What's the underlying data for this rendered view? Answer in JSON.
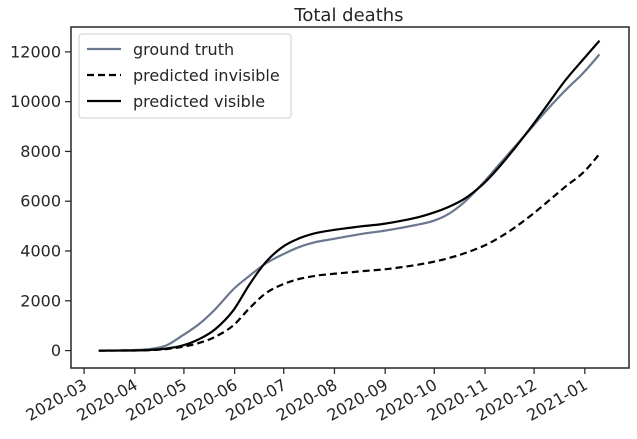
{
  "chart_data": {
    "type": "line",
    "title": "Total deaths",
    "xlabel": "",
    "ylabel": "",
    "x_ticks": [
      "2020-03",
      "2020-04",
      "2020-05",
      "2020-06",
      "2020-07",
      "2020-08",
      "2020-09",
      "2020-10",
      "2020-11",
      "2020-12",
      "2021-01"
    ],
    "xlim": [
      "2020-02-22",
      "2021-01-28"
    ],
    "y_ticks": [
      0,
      2000,
      4000,
      6000,
      8000,
      10000,
      12000
    ],
    "ylim": [
      -700,
      13000
    ],
    "grid": false,
    "legend": "top-left",
    "series": [
      {
        "name": "ground truth",
        "color": "#6b778d",
        "style": "solid",
        "points": [
          [
            "2020-03-10",
            0
          ],
          [
            "2020-03-20",
            5
          ],
          [
            "2020-03-31",
            20
          ],
          [
            "2020-04-10",
            60
          ],
          [
            "2020-04-20",
            200
          ],
          [
            "2020-04-30",
            600
          ],
          [
            "2020-05-10",
            1050
          ],
          [
            "2020-05-20",
            1650
          ],
          [
            "2020-05-31",
            2450
          ],
          [
            "2020-06-10",
            3000
          ],
          [
            "2020-06-20",
            3500
          ],
          [
            "2020-06-30",
            3850
          ],
          [
            "2020-07-10",
            4150
          ],
          [
            "2020-07-20",
            4350
          ],
          [
            "2020-07-31",
            4480
          ],
          [
            "2020-08-10",
            4600
          ],
          [
            "2020-08-20",
            4710
          ],
          [
            "2020-08-31",
            4810
          ],
          [
            "2020-09-10",
            4920
          ],
          [
            "2020-09-20",
            5050
          ],
          [
            "2020-09-30",
            5200
          ],
          [
            "2020-10-10",
            5500
          ],
          [
            "2020-10-20",
            6000
          ],
          [
            "2020-10-31",
            6750
          ],
          [
            "2020-11-10",
            7500
          ],
          [
            "2020-11-20",
            8250
          ],
          [
            "2020-11-30",
            9000
          ],
          [
            "2020-12-10",
            9750
          ],
          [
            "2020-12-20",
            10450
          ],
          [
            "2020-12-31",
            11150
          ],
          [
            "2021-01-10",
            11900
          ]
        ]
      },
      {
        "name": "predicted invisible",
        "color": "#000000",
        "style": "dashed",
        "points": [
          [
            "2020-03-10",
            0
          ],
          [
            "2020-03-31",
            5
          ],
          [
            "2020-04-10",
            20
          ],
          [
            "2020-04-20",
            60
          ],
          [
            "2020-04-30",
            150
          ],
          [
            "2020-05-10",
            300
          ],
          [
            "2020-05-20",
            550
          ],
          [
            "2020-05-31",
            1000
          ],
          [
            "2020-06-10",
            1700
          ],
          [
            "2020-06-20",
            2300
          ],
          [
            "2020-06-30",
            2650
          ],
          [
            "2020-07-10",
            2870
          ],
          [
            "2020-07-20",
            3000
          ],
          [
            "2020-07-31",
            3080
          ],
          [
            "2020-08-10",
            3140
          ],
          [
            "2020-08-20",
            3200
          ],
          [
            "2020-08-31",
            3260
          ],
          [
            "2020-09-10",
            3340
          ],
          [
            "2020-09-20",
            3440
          ],
          [
            "2020-09-30",
            3560
          ],
          [
            "2020-10-10",
            3720
          ],
          [
            "2020-10-20",
            3920
          ],
          [
            "2020-10-31",
            4200
          ],
          [
            "2020-11-10",
            4550
          ],
          [
            "2020-11-20",
            4980
          ],
          [
            "2020-11-30",
            5480
          ],
          [
            "2020-12-10",
            6020
          ],
          [
            "2020-12-20",
            6580
          ],
          [
            "2020-12-31",
            7150
          ],
          [
            "2021-01-10",
            7900
          ]
        ]
      },
      {
        "name": "predicted visible",
        "color": "#000000",
        "style": "solid",
        "points": [
          [
            "2020-03-10",
            0
          ],
          [
            "2020-03-31",
            5
          ],
          [
            "2020-04-10",
            25
          ],
          [
            "2020-04-20",
            80
          ],
          [
            "2020-04-30",
            200
          ],
          [
            "2020-05-10",
            450
          ],
          [
            "2020-05-20",
            850
          ],
          [
            "2020-05-31",
            1600
          ],
          [
            "2020-06-10",
            2650
          ],
          [
            "2020-06-20",
            3550
          ],
          [
            "2020-06-30",
            4150
          ],
          [
            "2020-07-10",
            4500
          ],
          [
            "2020-07-20",
            4710
          ],
          [
            "2020-07-31",
            4840
          ],
          [
            "2020-08-10",
            4930
          ],
          [
            "2020-08-20",
            5010
          ],
          [
            "2020-08-31",
            5090
          ],
          [
            "2020-09-10",
            5200
          ],
          [
            "2020-09-20",
            5340
          ],
          [
            "2020-09-30",
            5530
          ],
          [
            "2020-10-10",
            5780
          ],
          [
            "2020-10-20",
            6120
          ],
          [
            "2020-10-31",
            6700
          ],
          [
            "2020-11-10",
            7400
          ],
          [
            "2020-11-20",
            8200
          ],
          [
            "2020-11-30",
            9050
          ],
          [
            "2020-12-10",
            9950
          ],
          [
            "2020-12-20",
            10850
          ],
          [
            "2020-12-31",
            11700
          ],
          [
            "2021-01-10",
            12450
          ]
        ]
      }
    ]
  }
}
